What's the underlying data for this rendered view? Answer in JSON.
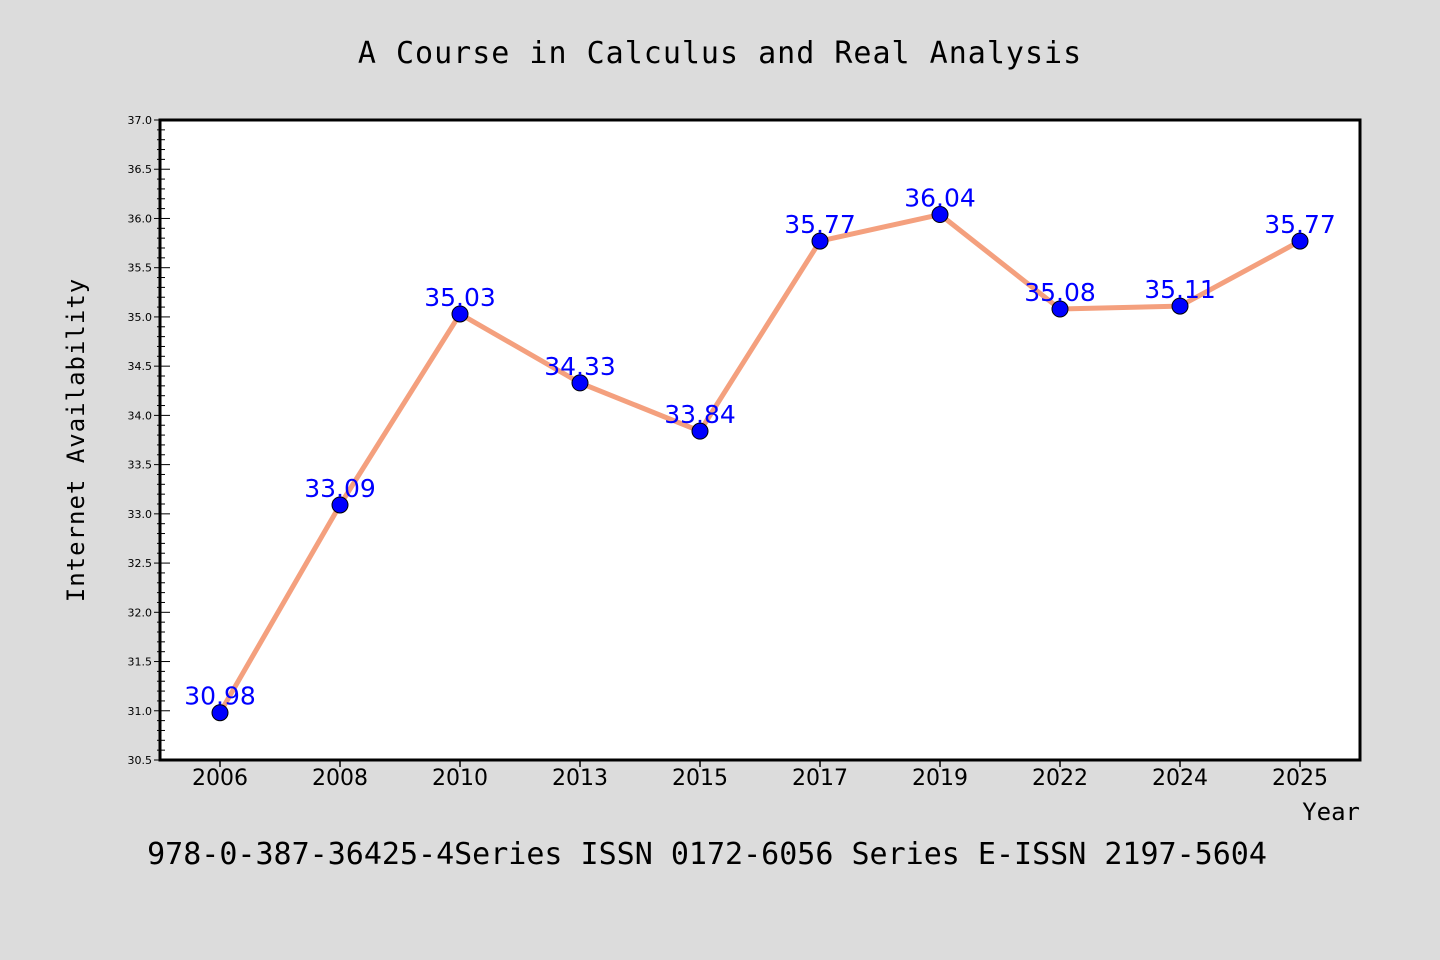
{
  "colors": {
    "background": "#dcdcdc",
    "plot_background": "#ffffff",
    "line": "#f4a07e",
    "marker": "#0000ff",
    "data_label": "#0000ff",
    "axes": "#000000"
  },
  "caption": "978-0-387-36425-4Series ISSN 0172-6056 Series E-ISSN 2197-5604",
  "chart_data": {
    "type": "line",
    "title": "A Course in Calculus and Real Analysis",
    "xlabel": "Year",
    "ylabel": "Internet Availability",
    "categories": [
      "2006",
      "2008",
      "2010",
      "2013",
      "2015",
      "2017",
      "2019",
      "2022",
      "2024",
      "2025"
    ],
    "series": [
      {
        "values": [
          30.98,
          33.09,
          35.03,
          34.33,
          33.84,
          35.77,
          36.04,
          35.08,
          35.11,
          35.77
        ],
        "labels": [
          "30.98",
          "33.09",
          "35.03",
          "34.33",
          "33.84",
          "35.77",
          "36.04",
          "35.08",
          "35.11",
          "35.77"
        ]
      }
    ],
    "ylim": [
      30.5,
      37.0
    ],
    "yticks": [
      "30.5",
      "31.0",
      "31.5",
      "32.0",
      "32.5",
      "33.0",
      "33.5",
      "34.0",
      "34.5",
      "35.0",
      "35.5",
      "36.0",
      "36.5",
      "37.0"
    ],
    "grid": false,
    "legend": "none"
  }
}
